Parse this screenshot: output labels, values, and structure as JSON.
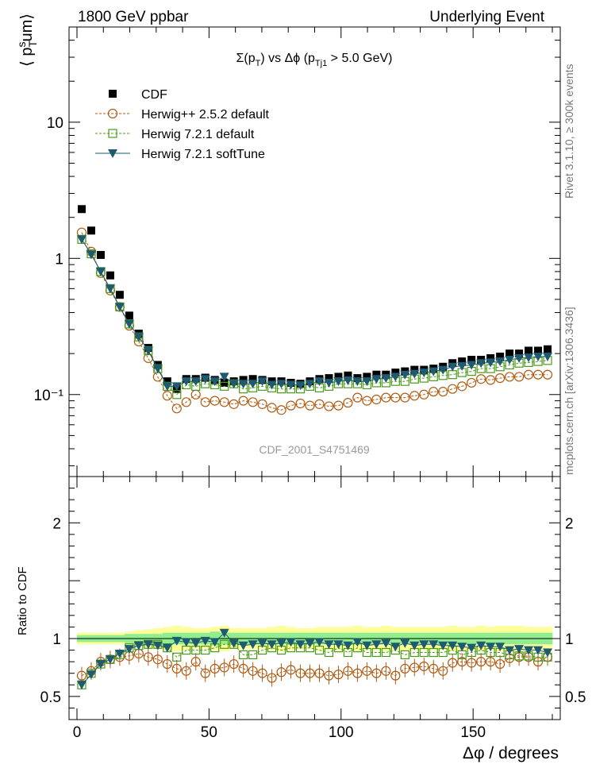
{
  "header": {
    "left": "1800 GeV ppbar",
    "right": "Underlying Event"
  },
  "side_labels": {
    "rivet": "Rivet 3.1.10, ≥ 300k events",
    "mcplots": "mcplots.cern.ch [arXiv:1306.3436]"
  },
  "analysis_id": "CDF_2001_S4751469",
  "chart_data": [
    {
      "panel": "main",
      "type": "scatter",
      "title": "Σ(pT) vs Δφ (pTj1 > 5.0 GeV)",
      "ylabel": "⟨ pTsum⟩",
      "xlabel": "",
      "xlim": [
        -3,
        183
      ],
      "ylim": [
        0.025,
        50
      ],
      "yscale": "log",
      "y_ticks": [
        {
          "value": 0.1,
          "label": "10⁻¹"
        },
        {
          "value": 1,
          "label": "1"
        },
        {
          "value": 10,
          "label": "10"
        }
      ],
      "x": [
        1.8,
        5.4,
        9.0,
        12.6,
        16.2,
        19.8,
        23.4,
        27.0,
        30.6,
        34.2,
        37.8,
        41.4,
        45.0,
        48.6,
        52.2,
        55.8,
        59.4,
        63.0,
        66.6,
        70.2,
        73.8,
        77.4,
        81.0,
        84.6,
        88.2,
        91.8,
        95.4,
        99.0,
        102.6,
        106.2,
        109.8,
        113.4,
        117.0,
        120.6,
        124.2,
        127.8,
        131.4,
        135.0,
        138.6,
        142.2,
        145.8,
        149.4,
        153.0,
        156.6,
        160.2,
        163.8,
        167.4,
        171.0,
        174.6,
        178.2
      ],
      "series": [
        {
          "name": "CDF",
          "color": "#000000",
          "marker": "filled-square",
          "values": [
            2.3,
            1.6,
            1.06,
            0.75,
            0.54,
            0.38,
            0.28,
            0.22,
            0.165,
            0.125,
            0.11,
            0.13,
            0.13,
            0.133,
            0.128,
            0.122,
            0.125,
            0.128,
            0.13,
            0.128,
            0.125,
            0.125,
            0.122,
            0.12,
            0.125,
            0.13,
            0.132,
            0.135,
            0.138,
            0.132,
            0.135,
            0.14,
            0.14,
            0.145,
            0.148,
            0.152,
            0.152,
            0.155,
            0.16,
            0.17,
            0.175,
            0.18,
            0.18,
            0.185,
            0.19,
            0.2,
            0.2,
            0.21,
            0.21,
            0.215
          ]
        },
        {
          "name": "Herwig++ 2.5.2 default",
          "color": "#b05a10",
          "marker": "open-circle",
          "values": [
            1.55,
            1.12,
            0.78,
            0.58,
            0.44,
            0.32,
            0.245,
            0.185,
            0.135,
            0.098,
            0.079,
            0.088,
            0.1,
            0.088,
            0.09,
            0.088,
            0.085,
            0.09,
            0.088,
            0.085,
            0.08,
            0.077,
            0.083,
            0.086,
            0.083,
            0.085,
            0.082,
            0.083,
            0.087,
            0.095,
            0.09,
            0.092,
            0.095,
            0.095,
            0.095,
            0.098,
            0.1,
            0.105,
            0.105,
            0.11,
            0.115,
            0.122,
            0.13,
            0.128,
            0.132,
            0.135,
            0.135,
            0.14,
            0.14,
            0.14
          ]
        },
        {
          "name": "Herwig 7.2.1 default",
          "color": "#4a9a1a",
          "marker": "open-square",
          "values": [
            1.38,
            1.08,
            0.8,
            0.6,
            0.44,
            0.33,
            0.265,
            0.21,
            0.155,
            0.115,
            0.1,
            0.118,
            0.115,
            0.12,
            0.118,
            0.115,
            0.12,
            0.11,
            0.112,
            0.115,
            0.112,
            0.11,
            0.11,
            0.11,
            0.115,
            0.112,
            0.115,
            0.12,
            0.12,
            0.12,
            0.118,
            0.122,
            0.122,
            0.125,
            0.125,
            0.13,
            0.132,
            0.135,
            0.138,
            0.14,
            0.145,
            0.148,
            0.155,
            0.155,
            0.16,
            0.165,
            0.17,
            0.172,
            0.175,
            0.178
          ]
        },
        {
          "name": "Herwig 7.2.1 softTune",
          "color": "#1e5a70",
          "marker": "filled-triangle-down",
          "values": [
            1.38,
            1.07,
            0.8,
            0.6,
            0.44,
            0.33,
            0.265,
            0.21,
            0.155,
            0.115,
            0.115,
            0.125,
            0.125,
            0.13,
            0.125,
            0.135,
            0.12,
            0.12,
            0.12,
            0.125,
            0.118,
            0.12,
            0.118,
            0.117,
            0.12,
            0.125,
            0.122,
            0.125,
            0.127,
            0.125,
            0.125,
            0.13,
            0.132,
            0.135,
            0.14,
            0.142,
            0.145,
            0.148,
            0.152,
            0.16,
            0.162,
            0.165,
            0.17,
            0.172,
            0.175,
            0.18,
            0.185,
            0.187,
            0.19,
            0.19
          ]
        }
      ]
    },
    {
      "panel": "ratio",
      "type": "scatter",
      "ylabel": "Ratio to CDF",
      "xlabel": "Δφ / degrees",
      "xlim": [
        -3,
        183
      ],
      "ylim": [
        0.3,
        2.4
      ],
      "x_ticks": [
        0,
        50,
        100,
        150
      ],
      "y_ticks": [
        0.5,
        1,
        2
      ],
      "band_green_halfwidth": [
        0.03,
        0.03,
        0.03,
        0.03,
        0.03,
        0.04,
        0.04,
        0.04,
        0.04,
        0.05,
        0.05,
        0.05,
        0.05,
        0.05,
        0.06,
        0.05,
        0.05,
        0.05,
        0.05,
        0.05,
        0.05,
        0.05,
        0.05,
        0.05,
        0.05,
        0.05,
        0.05,
        0.05,
        0.05,
        0.05,
        0.05,
        0.05,
        0.05,
        0.05,
        0.05,
        0.05,
        0.05,
        0.05,
        0.05,
        0.05,
        0.05,
        0.05,
        0.05,
        0.05,
        0.05,
        0.05,
        0.05,
        0.05,
        0.05,
        0.05
      ],
      "band_yellow_halfwidth": [
        0.05,
        0.05,
        0.05,
        0.05,
        0.05,
        0.06,
        0.07,
        0.08,
        0.09,
        0.1,
        0.11,
        0.1,
        0.09,
        0.09,
        0.1,
        0.11,
        0.09,
        0.09,
        0.09,
        0.09,
        0.1,
        0.11,
        0.1,
        0.09,
        0.09,
        0.1,
        0.1,
        0.1,
        0.1,
        0.11,
        0.1,
        0.1,
        0.11,
        0.1,
        0.1,
        0.1,
        0.1,
        0.1,
        0.1,
        0.11,
        0.1,
        0.1,
        0.11,
        0.1,
        0.11,
        0.11,
        0.11,
        0.1,
        0.1,
        0.1
      ],
      "series": [
        {
          "name": "Herwig++ 2.5.2 default",
          "color": "#b05a10",
          "values": [
            0.68,
            0.72,
            0.8,
            0.82,
            0.84,
            0.85,
            0.87,
            0.84,
            0.82,
            0.78,
            0.74,
            0.72,
            0.8,
            0.7,
            0.74,
            0.75,
            0.78,
            0.74,
            0.72,
            0.7,
            0.66,
            0.71,
            0.73,
            0.7,
            0.7,
            0.7,
            0.68,
            0.69,
            0.72,
            0.7,
            0.72,
            0.7,
            0.72,
            0.68,
            0.74,
            0.75,
            0.76,
            0.74,
            0.72,
            0.79,
            0.8,
            0.79,
            0.8,
            0.8,
            0.78,
            0.83,
            0.84,
            0.84,
            0.8,
            0.84
          ]
        },
        {
          "name": "Herwig 7.2.1 default",
          "color": "#4a9a1a",
          "values": [
            0.6,
            0.7,
            0.78,
            0.82,
            0.86,
            0.92,
            0.94,
            0.95,
            0.95,
            0.92,
            0.84,
            0.9,
            0.9,
            0.9,
            0.92,
            0.95,
            0.95,
            0.86,
            0.86,
            0.9,
            0.92,
            0.9,
            0.92,
            0.92,
            0.92,
            0.9,
            0.88,
            0.92,
            0.88,
            0.92,
            0.88,
            0.88,
            0.88,
            0.9,
            0.86,
            0.88,
            0.88,
            0.88,
            0.88,
            0.9,
            0.86,
            0.88,
            0.9,
            0.88,
            0.88,
            0.86,
            0.85,
            0.85,
            0.84,
            0.84
          ]
        },
        {
          "name": "Herwig 7.2.1 softTune",
          "color": "#1e5a70",
          "values": [
            0.6,
            0.69,
            0.78,
            0.82,
            0.87,
            0.91,
            0.94,
            0.95,
            0.94,
            0.92,
            0.98,
            0.97,
            0.96,
            0.98,
            0.97,
            1.05,
            0.96,
            0.94,
            0.95,
            0.96,
            0.95,
            0.96,
            0.97,
            0.95,
            0.96,
            0.97,
            0.95,
            0.95,
            0.94,
            0.97,
            0.94,
            0.95,
            0.96,
            0.93,
            0.96,
            0.94,
            0.95,
            0.95,
            0.94,
            0.94,
            0.93,
            0.92,
            0.94,
            0.93,
            0.93,
            0.9,
            0.91,
            0.9,
            0.9,
            0.88
          ]
        }
      ]
    }
  ]
}
